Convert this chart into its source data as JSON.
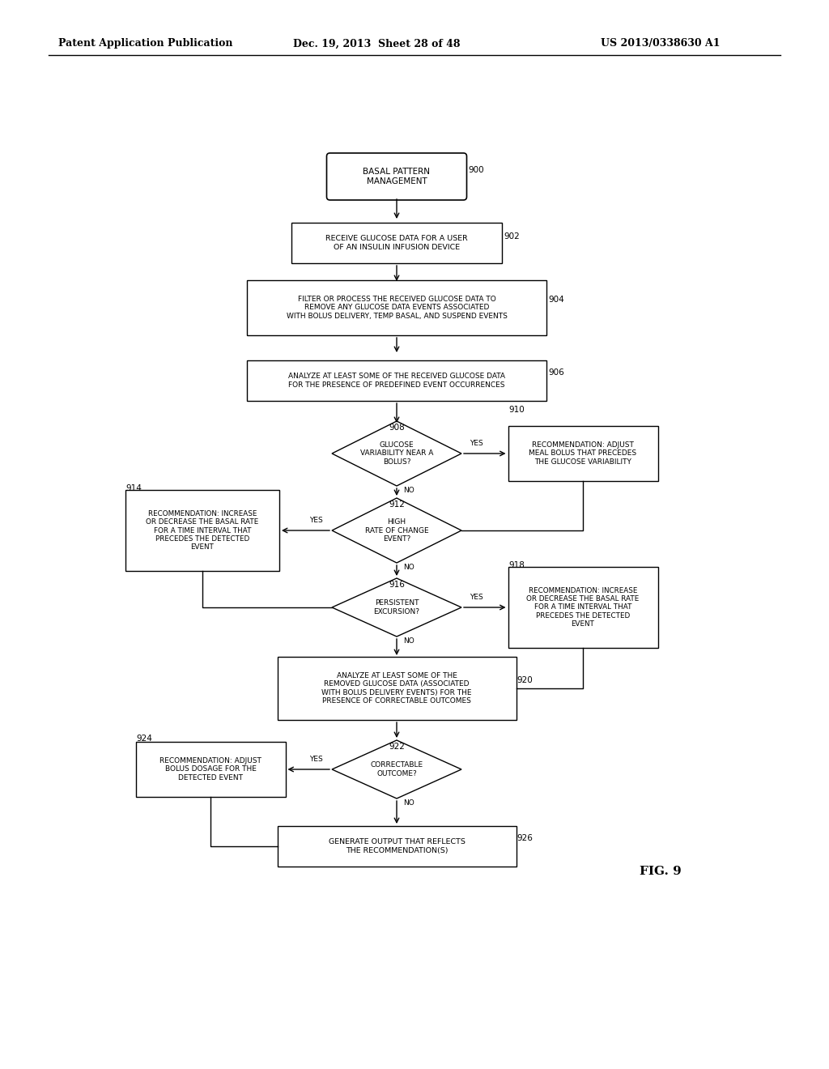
{
  "header_left": "Patent Application Publication",
  "header_mid": "Dec. 19, 2013  Sheet 28 of 48",
  "header_right": "US 2013/0338630 A1",
  "fig_label": "FIG. 9",
  "background_color": "#ffffff"
}
